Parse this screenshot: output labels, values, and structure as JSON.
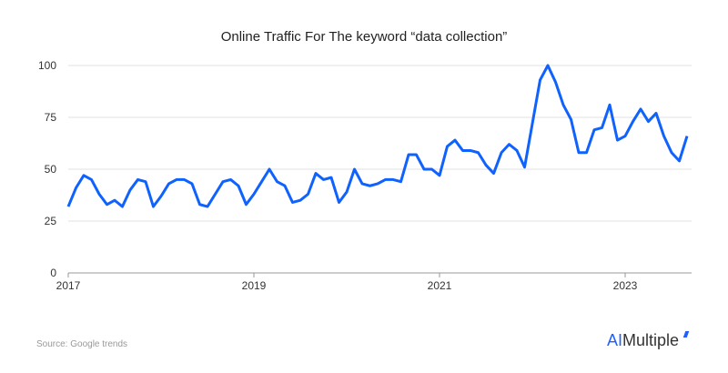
{
  "chart_data": {
    "type": "line",
    "title": "Online Traffic For The keyword “data collection”",
    "xlabel": "",
    "ylabel": "",
    "ylim": [
      0,
      100
    ],
    "yticks": [
      0,
      25,
      50,
      75,
      100
    ],
    "xticks": [
      "2017",
      "2019",
      "2021",
      "2023"
    ],
    "x_start": "2017-01",
    "x_frequency": "monthly",
    "grid": true,
    "line_color": "#0f62fe",
    "values": [
      32,
      41,
      47,
      45,
      38,
      33,
      35,
      32,
      40,
      45,
      44,
      32,
      37,
      43,
      45,
      45,
      43,
      33,
      32,
      38,
      44,
      45,
      42,
      33,
      38,
      44,
      50,
      44,
      42,
      34,
      35,
      38,
      48,
      45,
      46,
      34,
      39,
      50,
      43,
      42,
      43,
      45,
      45,
      44,
      57,
      57,
      50,
      50,
      47,
      61,
      64,
      59,
      59,
      58,
      52,
      48,
      58,
      62,
      59,
      51,
      72,
      93,
      100,
      92,
      81,
      74,
      58,
      58,
      69,
      70,
      81,
      64,
      66,
      73,
      79,
      73,
      77,
      66,
      58,
      54,
      66
    ]
  },
  "footer": {
    "source": "Source: Google trends",
    "logo_ai": "AI",
    "logo_rest": "Multiple"
  }
}
